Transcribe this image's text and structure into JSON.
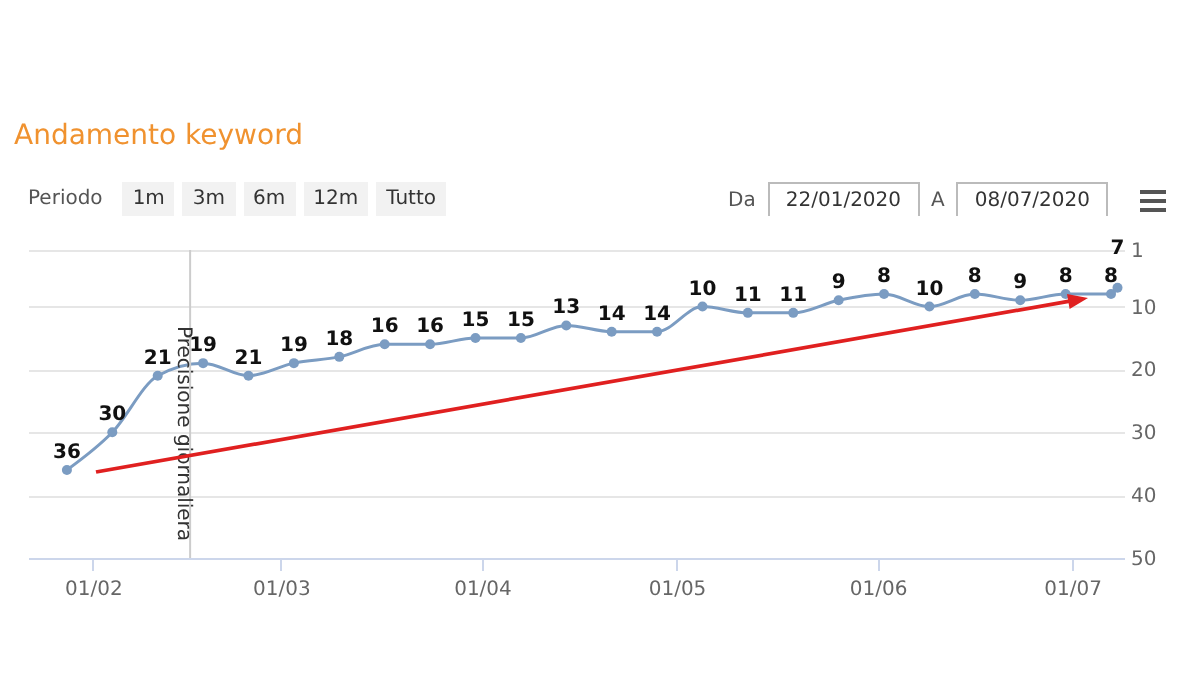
{
  "chart_data": {
    "type": "line",
    "title": "Andamento keyword",
    "x": [
      "2020-01-28",
      "2020-02-04",
      "2020-02-11",
      "2020-02-18",
      "2020-02-25",
      "2020-03-03",
      "2020-03-10",
      "2020-03-17",
      "2020-03-24",
      "2020-03-31",
      "2020-04-07",
      "2020-04-14",
      "2020-04-21",
      "2020-04-28",
      "2020-05-05",
      "2020-05-12",
      "2020-05-19",
      "2020-05-26",
      "2020-06-02",
      "2020-06-09",
      "2020-06-16",
      "2020-06-23",
      "2020-06-30",
      "2020-07-07",
      "2020-07-08"
    ],
    "series": [
      {
        "color": "#7b9cc2",
        "values": [
          36,
          30,
          21,
          19,
          21,
          19,
          18,
          16,
          16,
          15,
          15,
          13,
          14,
          14,
          10,
          11,
          11,
          9,
          8,
          10,
          8,
          9,
          8,
          8,
          7
        ]
      }
    ],
    "xlim": [
      "2020-01-22",
      "2020-07-09"
    ],
    "xticks": [
      {
        "value": "2020-02-01",
        "label": "01/02"
      },
      {
        "value": "2020-03-01",
        "label": "01/03"
      },
      {
        "value": "2020-04-01",
        "label": "01/04"
      },
      {
        "value": "2020-05-01",
        "label": "01/05"
      },
      {
        "value": "2020-06-01",
        "label": "01/06"
      },
      {
        "value": "2020-07-01",
        "label": "01/07"
      }
    ],
    "ylim": [
      50,
      1
    ],
    "yticks": [
      1,
      10,
      20,
      30,
      40,
      50
    ],
    "grid": "y",
    "marker": "circle",
    "data_labels": true,
    "ref_lines": [
      {
        "axis": "x",
        "value": "2020-02-16",
        "label": "Precisione giornaliera",
        "color": "#cccccc"
      }
    ],
    "annotations": [
      "Periodo",
      "1m",
      "3m",
      "6m",
      "12m",
      "Tutto",
      "Da",
      "22/01/2020",
      "A",
      "08/07/2020"
    ]
  }
}
